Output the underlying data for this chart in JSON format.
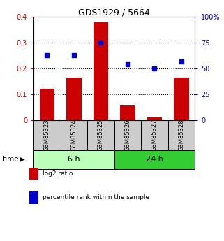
{
  "title": "GDS1929 / 5664",
  "categories": [
    "GSM85323",
    "GSM85324",
    "GSM85325",
    "GSM85326",
    "GSM85327",
    "GSM85328"
  ],
  "log2_ratio": [
    0.12,
    0.165,
    0.38,
    0.055,
    0.01,
    0.165
  ],
  "percentile_rank": [
    63,
    63,
    75,
    54,
    50,
    57
  ],
  "bar_color": "#cc0000",
  "dot_color": "#0000cc",
  "left_ylim": [
    0,
    0.4
  ],
  "right_ylim": [
    0,
    100
  ],
  "left_yticks": [
    0,
    0.1,
    0.2,
    0.3,
    0.4
  ],
  "right_yticks": [
    0,
    25,
    50,
    75,
    100
  ],
  "left_yticklabels": [
    "0",
    "0.1",
    "0.2",
    "0.3",
    "0.4"
  ],
  "right_yticklabels": [
    "0",
    "25",
    "50",
    "75",
    "100%"
  ],
  "dotted_lines": [
    0.1,
    0.2,
    0.3
  ],
  "group_labels": [
    "6 h",
    "24 h"
  ],
  "group_ranges": [
    [
      0,
      3
    ],
    [
      3,
      6
    ]
  ],
  "group_colors_light": [
    "#bbffbb",
    "#33cc33"
  ],
  "time_label": "time",
  "legend_entries": [
    "log2 ratio",
    "percentile rank within the sample"
  ],
  "legend_colors": [
    "#cc0000",
    "#0000cc"
  ],
  "bar_width": 0.55,
  "left_axis_color": "#cc0000",
  "right_axis_color": "#0000cc",
  "label_strip_color": "#cccccc",
  "figure_width": 3.21,
  "figure_height": 3.45,
  "dpi": 100
}
